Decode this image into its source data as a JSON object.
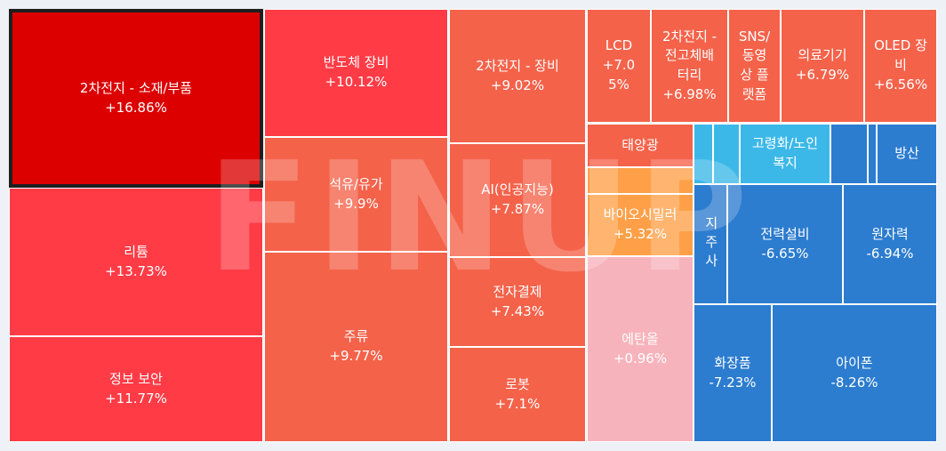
{
  "chart_data": {
    "type": "treemap",
    "watermark": "FINUP",
    "selected": "2차전지 - 소재/부품",
    "colors": {
      "strong_up": "#dc0000",
      "up_high": "#ff3b46",
      "up_mid": "#f4624a",
      "up_low": "#ffa048",
      "up_tiny": "#f7b3bb",
      "down_light": "#3cb8e8",
      "down": "#2c7ccf"
    },
    "sectors": [
      {
        "name": "2차전지 - 소재/부품",
        "change": "+16.86%",
        "value": 16.86,
        "color": "#dc0000"
      },
      {
        "name": "리튬",
        "change": "+13.73%",
        "value": 13.73,
        "color": "#ff3b46"
      },
      {
        "name": "정보 보안",
        "change": "+11.77%",
        "value": 11.77,
        "color": "#ff3b46"
      },
      {
        "name": "반도체 장비",
        "change": "+10.12%",
        "value": 10.12,
        "color": "#ff3b46"
      },
      {
        "name": "석유/유가",
        "change": "+9.9%",
        "value": 9.9,
        "color": "#f4624a"
      },
      {
        "name": "주류",
        "change": "+9.77%",
        "value": 9.77,
        "color": "#f4624a"
      },
      {
        "name": "2차전지 - 장비",
        "change": "+9.02%",
        "value": 9.02,
        "color": "#f4624a"
      },
      {
        "name": "AI(인공지능)",
        "change": "+7.87%",
        "value": 7.87,
        "color": "#f4624a"
      },
      {
        "name": "전자결제",
        "change": "+7.43%",
        "value": 7.43,
        "color": "#f4624a"
      },
      {
        "name": "로봇",
        "change": "+7.1%",
        "value": 7.1,
        "color": "#f4624a"
      },
      {
        "name": "LCD",
        "change": "+7.05%",
        "value": 7.05,
        "color": "#f4624a",
        "lines": [
          "LCD",
          "+7.0",
          "5%"
        ]
      },
      {
        "name": "2차전지 - 전고체배터리",
        "change": "+6.98%",
        "value": 6.98,
        "color": "#f4624a",
        "lines": [
          "2차전지 -",
          "전고체배",
          "터리",
          "+6.98%"
        ]
      },
      {
        "name": "SNS/동영상 플랫폼",
        "change": "",
        "value": null,
        "color": "#f4624a",
        "lines": [
          "SNS/",
          "동영",
          "상 플",
          "랫폼"
        ]
      },
      {
        "name": "의료기기",
        "change": "+6.79%",
        "value": 6.79,
        "color": "#f4624a"
      },
      {
        "name": "OLED 장비",
        "change": "+6.56%",
        "value": 6.56,
        "color": "#f4624a",
        "lines": [
          "OLED 장",
          "비",
          "+6.56%"
        ]
      },
      {
        "name": "태양광",
        "change": "",
        "value": null,
        "color": "#f4624a"
      },
      {
        "name": "",
        "change": "",
        "value": null,
        "color": "#ffa048"
      },
      {
        "name": "바이오시밀러",
        "change": "+5.32%",
        "value": 5.32,
        "color": "#ffa048"
      },
      {
        "name": "에탄올",
        "change": "+0.96%",
        "value": 0.96,
        "color": "#f7b3bb"
      },
      {
        "name": "",
        "change": "",
        "value": null,
        "color": "#3cb8e8"
      },
      {
        "name": "",
        "change": "",
        "value": null,
        "color": "#3cb8e8"
      },
      {
        "name": "고령화/노인복지",
        "change": "",
        "value": null,
        "color": "#3cb8e8",
        "lines": [
          "고령화/노인",
          "복지"
        ]
      },
      {
        "name": "",
        "change": "",
        "value": null,
        "color": "#2c7ccf"
      },
      {
        "name": "",
        "change": "",
        "value": null,
        "color": "#2c7ccf"
      },
      {
        "name": "방산",
        "change": "",
        "value": null,
        "color": "#2c7ccf"
      },
      {
        "name": "지주사",
        "change": "",
        "value": null,
        "color": "#2c7ccf",
        "vertical": true
      },
      {
        "name": "전력설비",
        "change": "-6.65%",
        "value": -6.65,
        "color": "#2c7ccf"
      },
      {
        "name": "원자력",
        "change": "-6.94%",
        "value": -6.94,
        "color": "#2c7ccf"
      },
      {
        "name": "화장품",
        "change": "-7.23%",
        "value": -7.23,
        "color": "#2c7ccf"
      },
      {
        "name": "아이폰",
        "change": "-8.26%",
        "value": -8.26,
        "color": "#2c7ccf"
      }
    ]
  }
}
